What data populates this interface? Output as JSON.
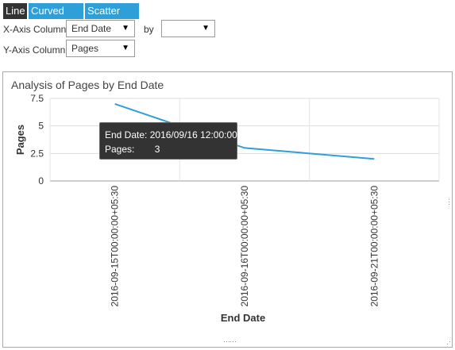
{
  "tabs": {
    "line": "Line",
    "curved_line": "Curved Line",
    "scatter_plot": "Scatter Plot"
  },
  "controls": {
    "x_axis_label": "X-Axis Column",
    "x_axis_value": "End Date",
    "by_label": "by",
    "by_value": "",
    "y_axis_label": "Y-Axis Column",
    "y_axis_value": "Pages"
  },
  "tooltip": {
    "end_date_label": "End Date:",
    "end_date_value": "2016/09/16 12:00:00",
    "pages_label": "Pages:",
    "pages_value": "3"
  },
  "colors": {
    "series": "#2e9fd8",
    "active_tab": "#333333",
    "tab": "#2e9fd8"
  },
  "chart_data": {
    "type": "line",
    "title": "Analysis of Pages by End Date",
    "xlabel": "End Date",
    "ylabel": "Pages",
    "x": [
      "2016-09-15T00:00:00+05:30",
      "2016-09-16T00:00:00+05:30",
      "2016-09-21T00:00:00+05:30"
    ],
    "series": [
      {
        "values": [
          7,
          3,
          2
        ]
      }
    ],
    "yticks": [
      "0",
      "2.5",
      "5",
      "7.5"
    ],
    "ylim": [
      0,
      7.5
    ],
    "grid": true,
    "legend": "none"
  }
}
